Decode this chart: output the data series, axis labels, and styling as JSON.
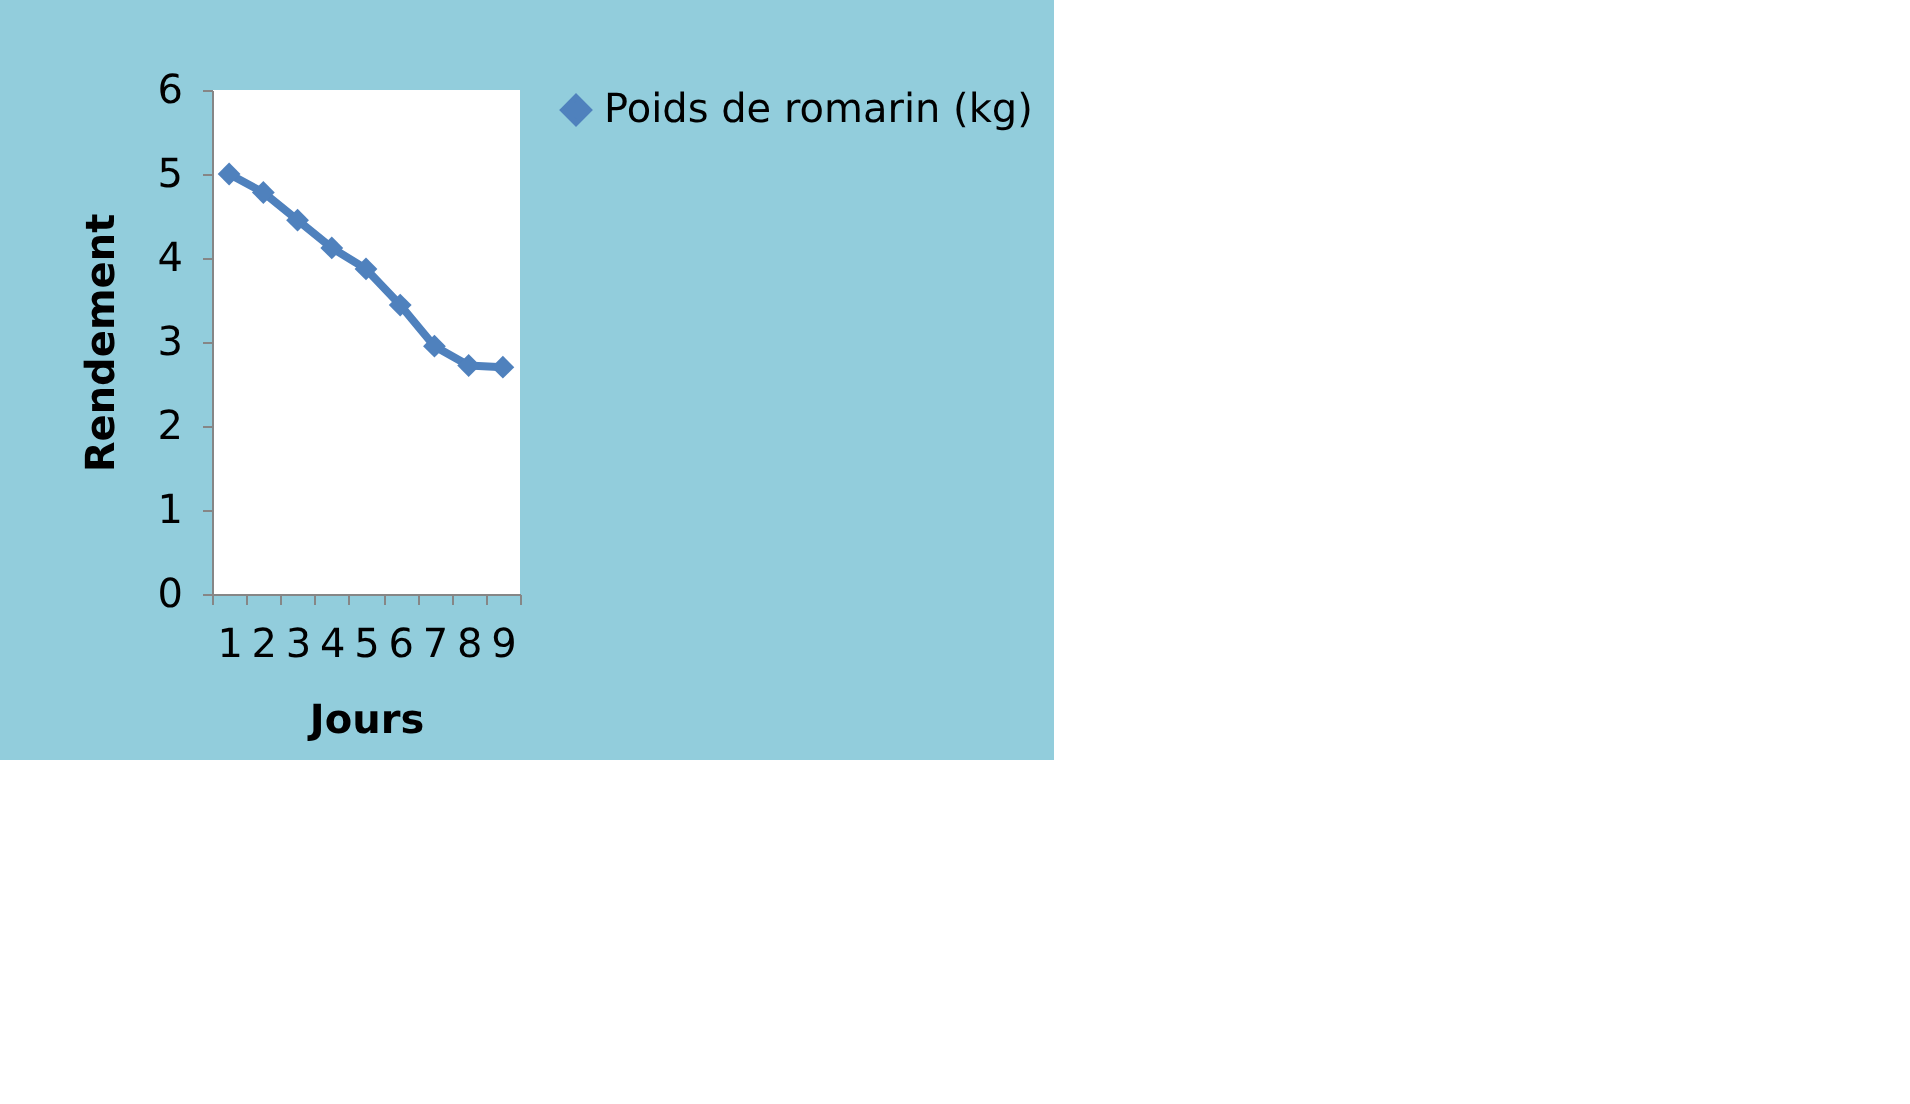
{
  "chart_data": {
    "type": "line",
    "xlabel": "Jours",
    "ylabel": "Rendement",
    "categories": [
      "1",
      "2",
      "3",
      "4",
      "5",
      "6",
      "7",
      "8",
      "9"
    ],
    "series": [
      {
        "name": "Poids de romarin (kg)",
        "color": "#4f81bd",
        "values": [
          5.0,
          4.78,
          4.45,
          4.12,
          3.87,
          3.44,
          2.95,
          2.72,
          2.7
        ]
      }
    ],
    "ylim": [
      0,
      6
    ],
    "yticks": [
      0,
      1,
      2,
      3,
      4,
      5,
      6
    ],
    "grid": false,
    "legend": "right",
    "marker": "diamond",
    "line_style": "solid"
  }
}
